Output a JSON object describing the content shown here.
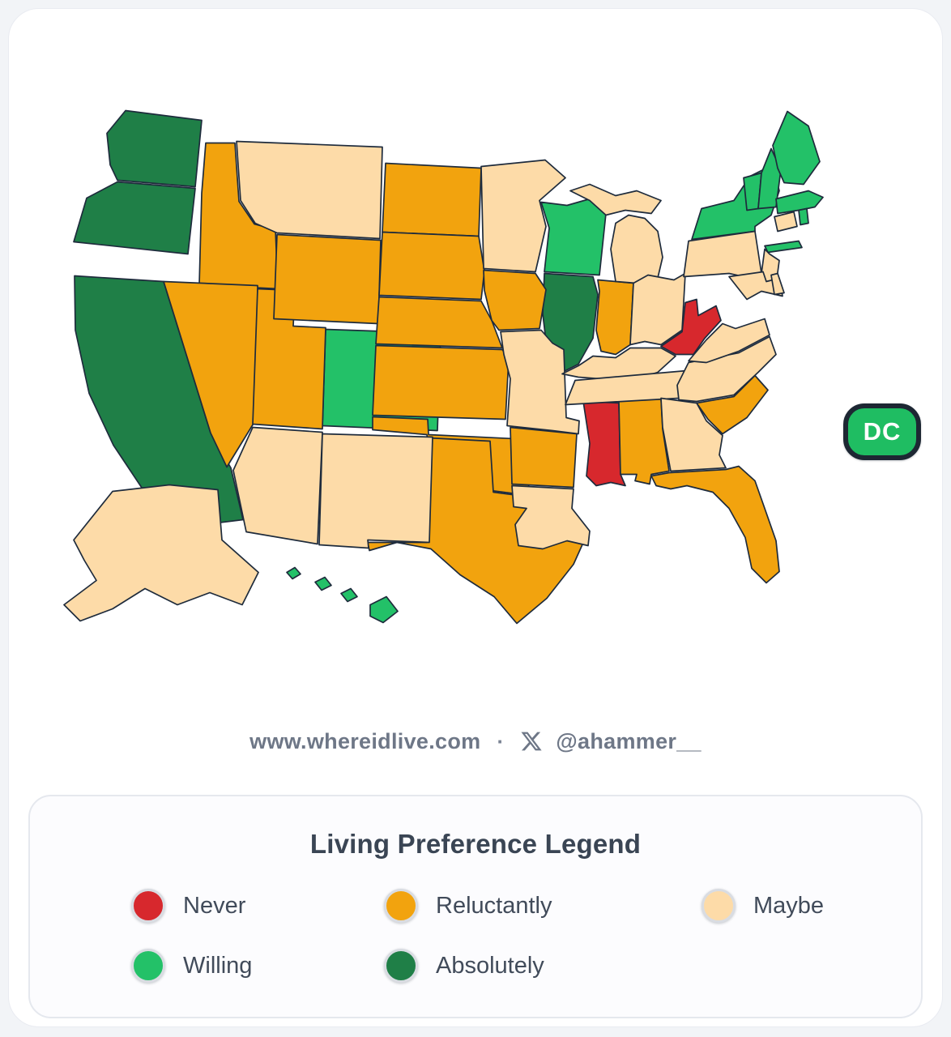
{
  "page": {
    "background": "#f2f4f7",
    "card_background": "#ffffff"
  },
  "footer": {
    "website": "www.whereidlive.com",
    "separator": "·",
    "handle": "@ahammer__",
    "x_icon": "x-logo",
    "text_color": "#6e7787"
  },
  "dc_badge": {
    "label": "DC",
    "fill": "#1fbd62",
    "border": "#1d2733",
    "text_color": "#ffffff"
  },
  "legend": {
    "title": "Living Preference Legend",
    "items": [
      {
        "key": "never",
        "label": "Never",
        "color": "#d7282d"
      },
      {
        "key": "reluctantly",
        "label": "Reluctantly",
        "color": "#f2a30e"
      },
      {
        "key": "maybe",
        "label": "Maybe",
        "color": "#fddba8"
      },
      {
        "key": "willing",
        "label": "Willing",
        "color": "#23c168"
      },
      {
        "key": "absolutely",
        "label": "Absolutely",
        "color": "#1f7f47"
      }
    ]
  },
  "chart_data": {
    "type": "choropleth-map",
    "region": "United States",
    "title": "Living Preference Legend",
    "stroke_color": "#1e2b3c",
    "categories": [
      "Never",
      "Reluctantly",
      "Maybe",
      "Willing",
      "Absolutely"
    ],
    "states": {
      "WA": "absolutely",
      "OR": "absolutely",
      "CA": "absolutely",
      "IL": "absolutely",
      "CO": "willing",
      "WI": "willing",
      "NY": "willing",
      "VT": "willing",
      "NH": "willing",
      "ME": "willing",
      "MA": "willing",
      "RI": "willing",
      "HI": "willing",
      "DC": "willing",
      "MS": "never",
      "WV": "never",
      "ID": "reluctantly",
      "NV": "reluctantly",
      "UT": "reluctantly",
      "WY": "reluctantly",
      "ND": "reluctantly",
      "SD": "reluctantly",
      "NE": "reluctantly",
      "KS": "reluctantly",
      "OK": "reluctantly",
      "TX": "reluctantly",
      "IA": "reluctantly",
      "AR": "reluctantly",
      "IN": "reluctantly",
      "AL": "reluctantly",
      "FL": "reluctantly",
      "SC": "reluctantly",
      "MT": "maybe",
      "AZ": "maybe",
      "NM": "maybe",
      "MN": "maybe",
      "MO": "maybe",
      "LA": "maybe",
      "MI": "maybe",
      "OH": "maybe",
      "KY": "maybe",
      "TN": "maybe",
      "GA": "maybe",
      "NC": "maybe",
      "VA": "maybe",
      "PA": "maybe",
      "NJ": "maybe",
      "CT": "maybe",
      "MD": "maybe",
      "DE": "maybe",
      "AK": "maybe"
    }
  }
}
